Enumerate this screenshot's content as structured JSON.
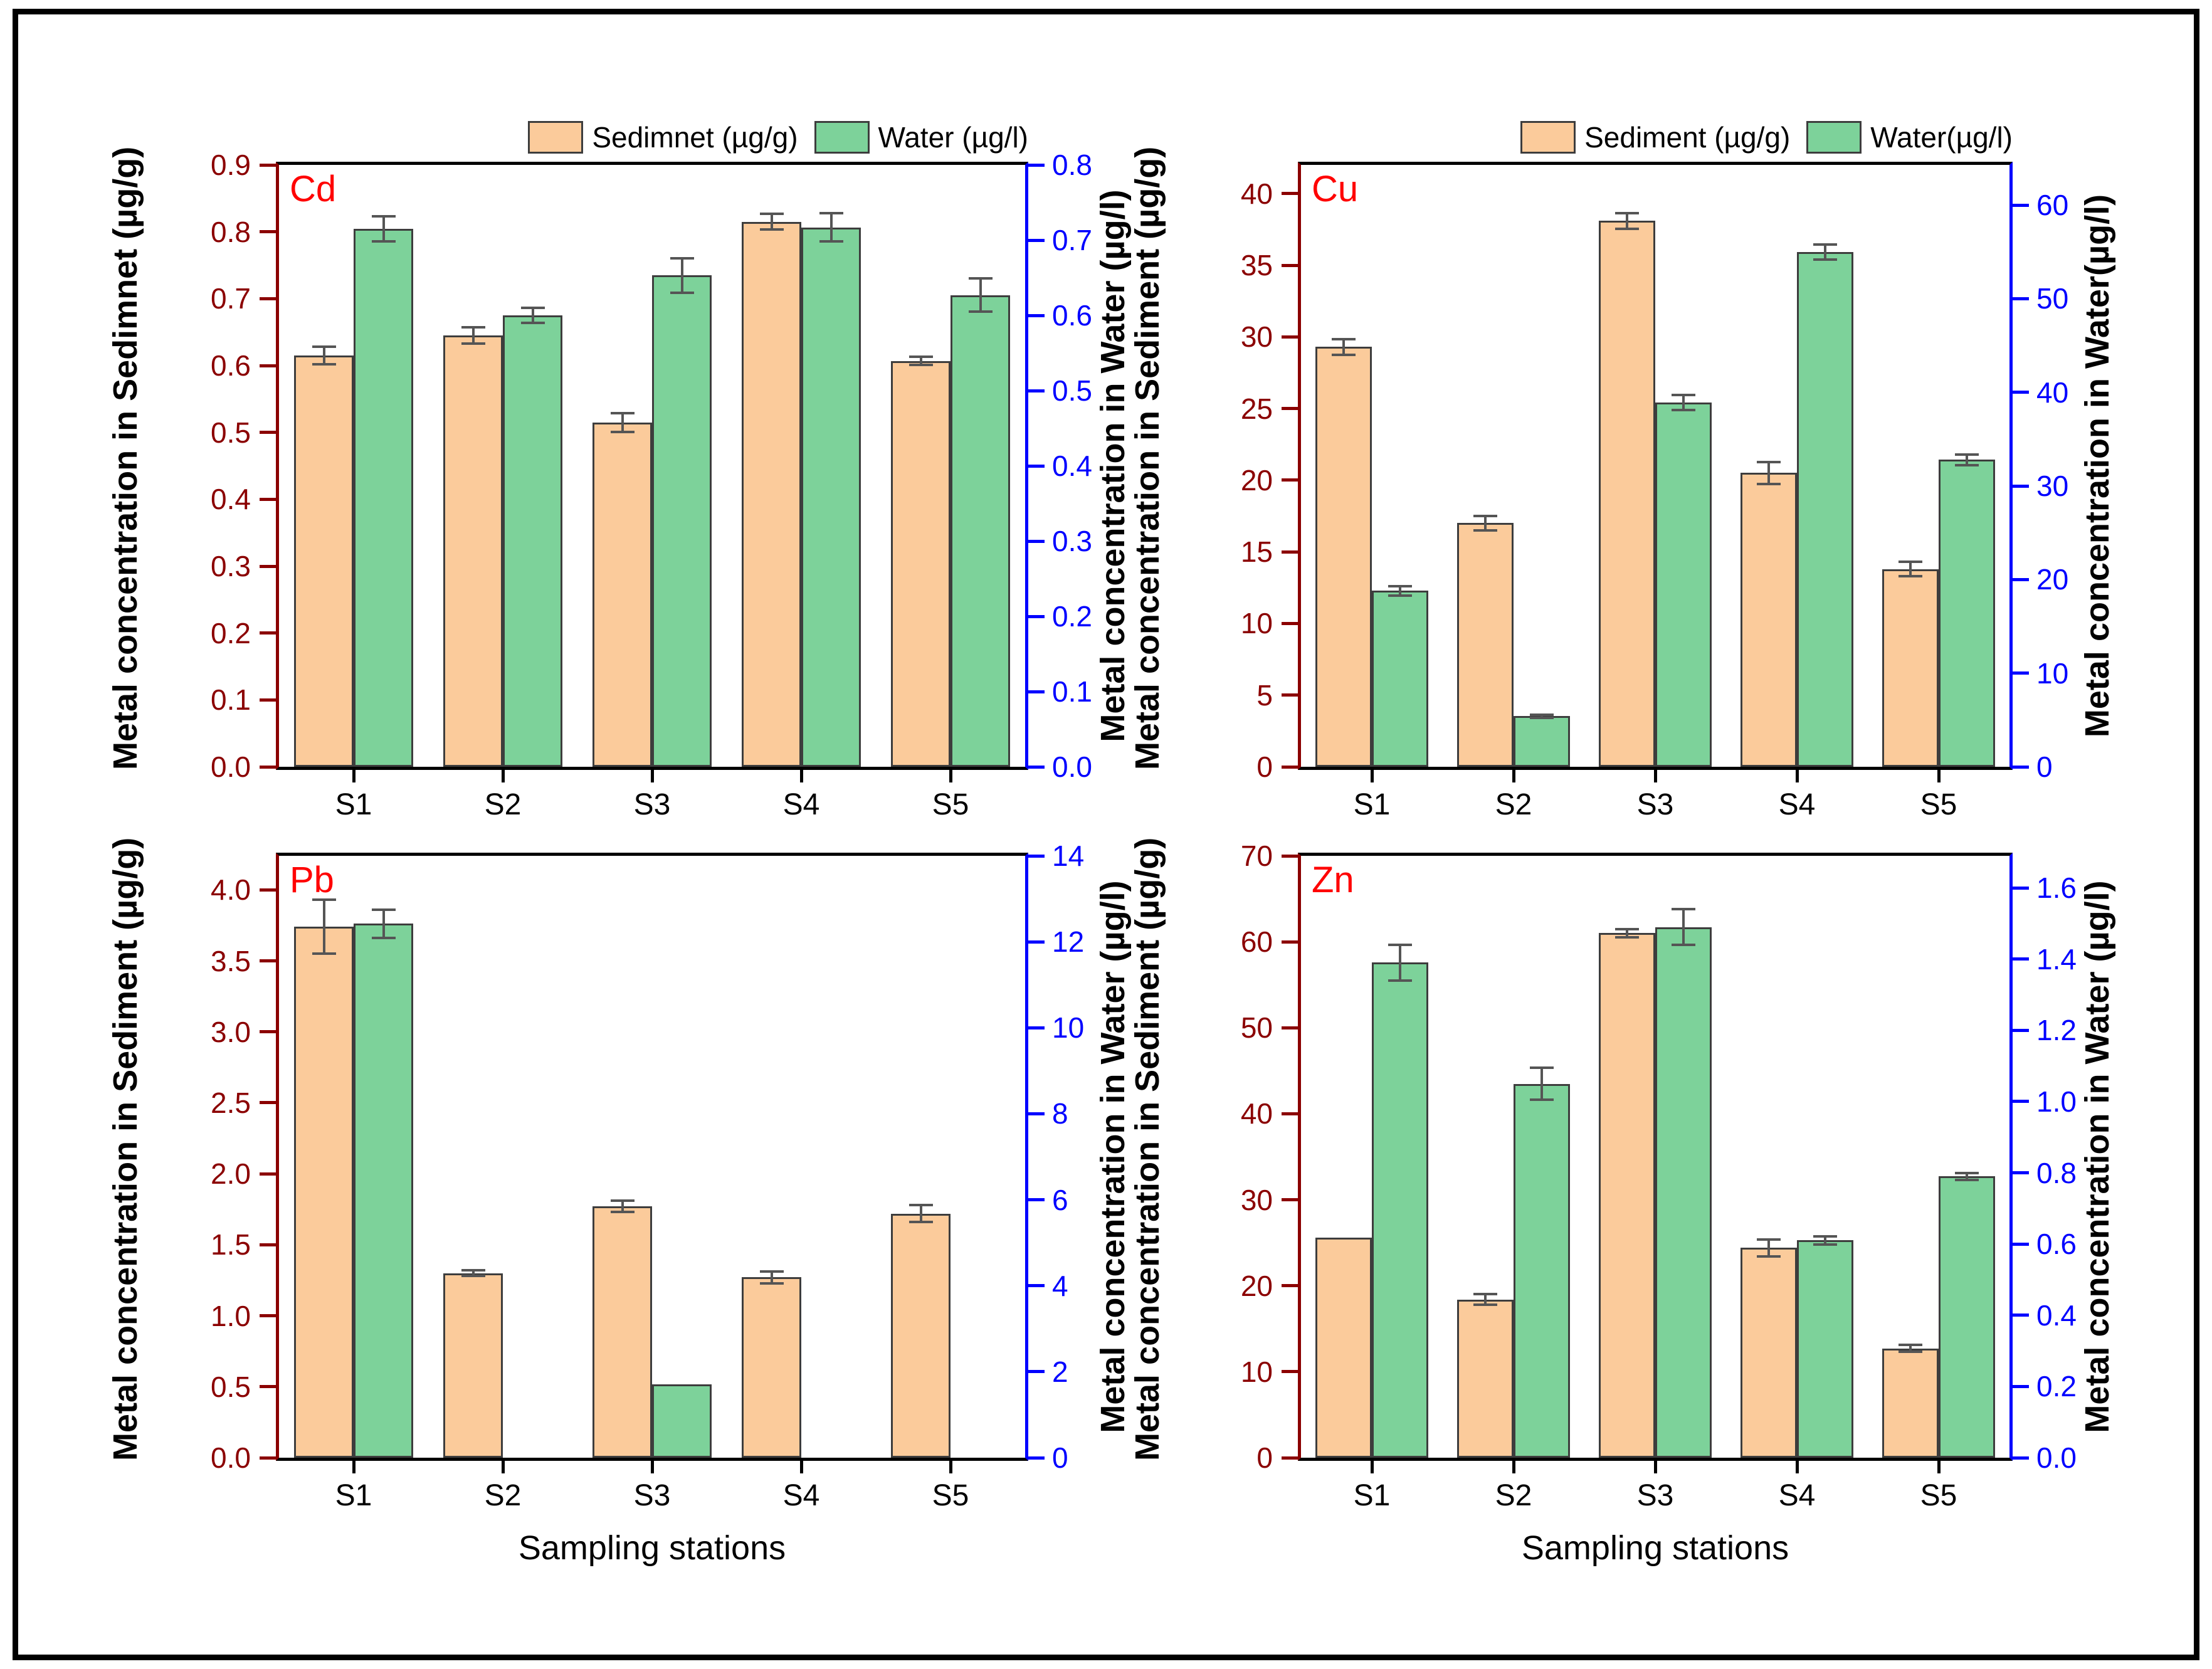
{
  "figure": {
    "x_axis_title": "Sampling stations",
    "colors": {
      "sediment_fill": "#FBCB9B",
      "water_fill": "#7DD29A",
      "bar_edge": "#3d3d3d",
      "error_bar": "#555555",
      "left_axis": "#8B0000",
      "right_axis": "#0000FF",
      "panel_label": "#FF0000",
      "frame": "#000000"
    }
  },
  "chart_data": [
    {
      "type": "bar",
      "title": "Cd",
      "categories": [
        "S1",
        "S2",
        "S3",
        "S4",
        "S5"
      ],
      "left_axis": {
        "label": "Metal concentration in Sedimnet (µg/g)",
        "ticks": [
          "0.0",
          "0.1",
          "0.2",
          "0.3",
          "0.4",
          "0.5",
          "0.6",
          "0.7",
          "0.8",
          "0.9"
        ],
        "axis_max": 0.9
      },
      "right_axis": {
        "label": "Metal concentration in Water (µg/l)",
        "ticks": [
          "0.0",
          "0.1",
          "0.2",
          "0.3",
          "0.4",
          "0.5",
          "0.6",
          "0.7",
          "0.8"
        ],
        "axis_max": 0.8
      },
      "legend": [
        {
          "name": "Sedimnet (µg/g)",
          "fill": "sediment_fill"
        },
        {
          "name": "Water (µg/l)",
          "fill": "water_fill"
        }
      ],
      "series": [
        {
          "name": "Sedimnet (µg/g)",
          "axis": "left",
          "fill": "sediment_fill",
          "values": [
            0.615,
            0.645,
            0.515,
            0.815,
            0.607
          ],
          "errors": [
            0.013,
            0.012,
            0.014,
            0.012,
            0.006
          ]
        },
        {
          "name": "Water (µg/l)",
          "axis": "right",
          "fill": "water_fill",
          "values": [
            0.715,
            0.6,
            0.653,
            0.717,
            0.627
          ],
          "errors": [
            0.017,
            0.01,
            0.023,
            0.019,
            0.022
          ]
        }
      ],
      "show_x_title": false,
      "legend_visible": true
    },
    {
      "type": "bar",
      "title": "Cu",
      "categories": [
        "S1",
        "S2",
        "S3",
        "S4",
        "S5"
      ],
      "left_axis": {
        "label": "Metal concentration in Sediment (µg/g)",
        "ticks": [
          "0",
          "5",
          "10",
          "15",
          "20",
          "25",
          "30",
          "35",
          "40"
        ],
        "axis_max": 42
      },
      "right_axis": {
        "label": "Metal concentration in Water(µg/l)",
        "ticks": [
          "0",
          "10",
          "20",
          "30",
          "40",
          "50",
          "60"
        ],
        "axis_max": 64.3
      },
      "legend": [
        {
          "name": "Sediment (µg/g)",
          "fill": "sediment_fill"
        },
        {
          "name": "Water(µg/l)",
          "fill": "water_fill"
        }
      ],
      "series": [
        {
          "name": "Sediment (µg/g)",
          "axis": "left",
          "fill": "sediment_fill",
          "values": [
            29.3,
            17.0,
            38.1,
            20.5,
            13.8
          ],
          "errors": [
            0.55,
            0.5,
            0.55,
            0.75,
            0.5
          ]
        },
        {
          "name": "Water(µg/l)",
          "axis": "right",
          "fill": "water_fill",
          "values": [
            18.8,
            5.4,
            38.9,
            55.0,
            32.8
          ],
          "errors": [
            0.5,
            0.15,
            0.8,
            0.8,
            0.55
          ]
        }
      ],
      "show_x_title": false,
      "legend_visible": true
    },
    {
      "type": "bar",
      "title": "Pb",
      "categories": [
        "S1",
        "S2",
        "S3",
        "S4",
        "S5"
      ],
      "left_axis": {
        "label": "Metal concentration in Sediment (µg/g)",
        "ticks": [
          "0.0",
          "0.5",
          "1.0",
          "1.5",
          "2.0",
          "2.5",
          "3.0",
          "3.5",
          "4.0"
        ],
        "axis_max": 4.24
      },
      "right_axis": {
        "label": "Metal concentration in Water (µg/l)",
        "ticks": [
          "0",
          "2",
          "4",
          "6",
          "8",
          "10",
          "12",
          "14"
        ],
        "axis_max": 14
      },
      "legend": [],
      "series": [
        {
          "name": "Sediment (µg/g)",
          "axis": "left",
          "fill": "sediment_fill",
          "values": [
            3.74,
            1.3,
            1.77,
            1.27,
            1.72
          ],
          "errors": [
            0.19,
            0.02,
            0.04,
            0.04,
            0.06
          ]
        },
        {
          "name": "Water (µg/l)",
          "axis": "right",
          "fill": "water_fill",
          "values": [
            12.42,
            null,
            1.7,
            null,
            null
          ],
          "errors": [
            0.33,
            null,
            null,
            null,
            null
          ]
        }
      ],
      "show_x_title": true,
      "legend_visible": false
    },
    {
      "type": "bar",
      "title": "Zn",
      "categories": [
        "S1",
        "S2",
        "S3",
        "S4",
        "S5"
      ],
      "left_axis": {
        "label": "Metal concentration in Sediment (µg/g)",
        "ticks": [
          "0",
          "10",
          "20",
          "30",
          "40",
          "50",
          "60",
          "70"
        ],
        "axis_max": 70
      },
      "right_axis": {
        "label": "Metal concentration in Water (µg/l)",
        "ticks": [
          "0.0",
          "0.2",
          "0.4",
          "0.6",
          "0.8",
          "1.0",
          "1.2",
          "1.4",
          "1.6"
        ],
        "axis_max": 1.69
      },
      "legend": [],
      "series": [
        {
          "name": "Sediment (µg/g)",
          "axis": "left",
          "fill": "sediment_fill",
          "values": [
            25.6,
            18.4,
            61.0,
            24.4,
            12.7
          ],
          "errors": [
            null,
            0.6,
            0.45,
            1.0,
            0.4
          ]
        },
        {
          "name": "Water (µg/l)",
          "axis": "right",
          "fill": "water_fill",
          "values": [
            1.39,
            1.05,
            1.49,
            0.61,
            0.79
          ],
          "errors": [
            0.05,
            0.045,
            0.05,
            0.012,
            0.01
          ]
        }
      ],
      "show_x_title": true,
      "legend_visible": false
    }
  ]
}
